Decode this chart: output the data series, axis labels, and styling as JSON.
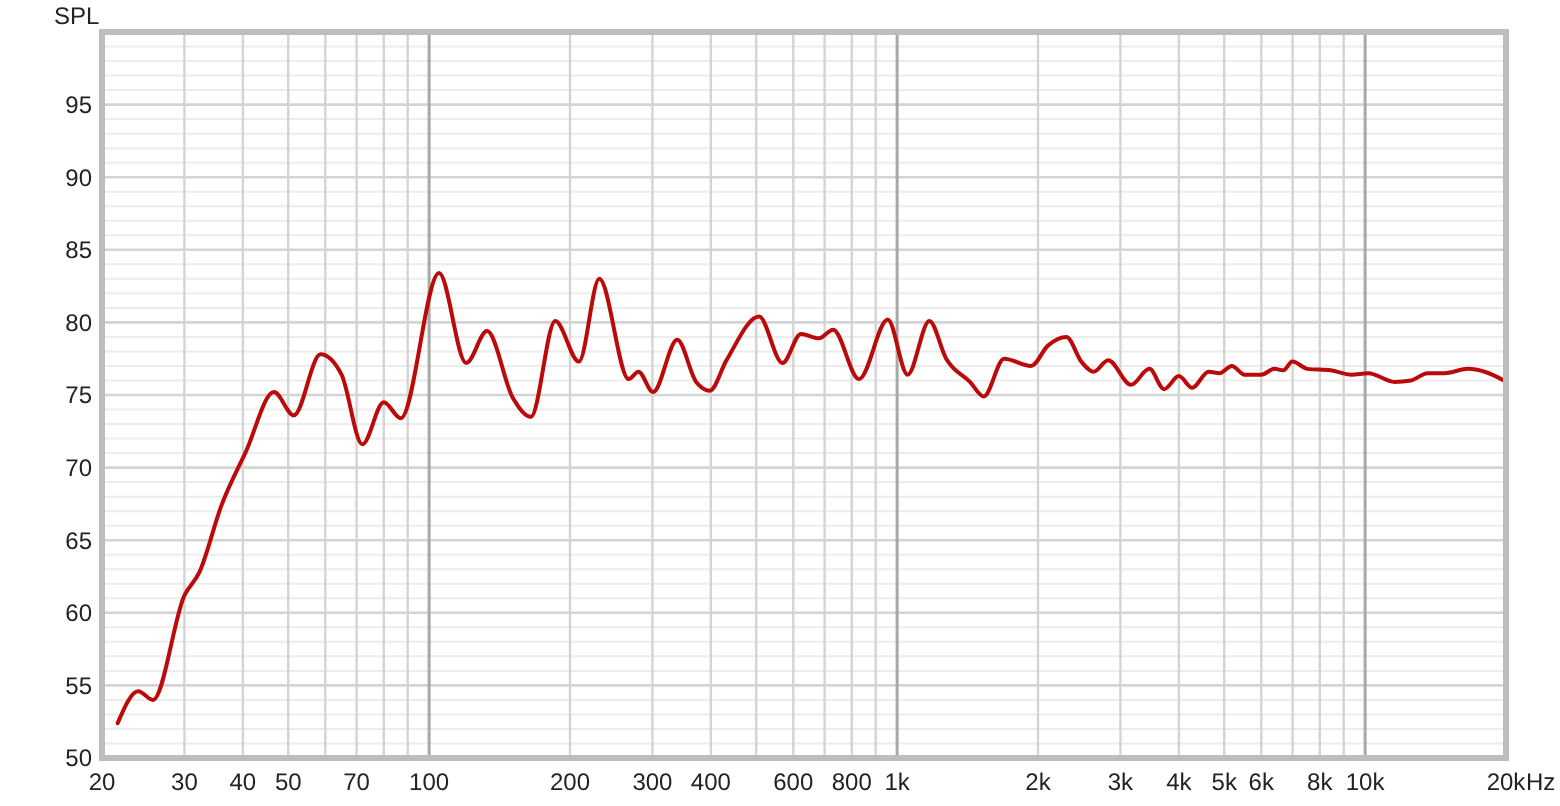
{
  "chart_data": {
    "type": "line",
    "ylabel": "SPL",
    "log": "x",
    "grid": true,
    "marker": "none",
    "line_style": "solid",
    "xlim": [
      20,
      20000
    ],
    "ylim": [
      50,
      100
    ],
    "xticks": [
      20,
      30,
      40,
      50,
      {
        "value": 60,
        "label": null
      },
      70,
      {
        "value": 80,
        "label": null
      },
      {
        "value": 90,
        "label": null
      },
      100,
      200,
      300,
      400,
      {
        "value": 500,
        "label": null
      },
      600,
      {
        "value": 700,
        "label": null
      },
      800,
      {
        "value": 900,
        "label": null
      },
      {
        "value": 1000,
        "label": "1k"
      },
      {
        "value": 2000,
        "label": "2k"
      },
      {
        "value": 3000,
        "label": "3k"
      },
      {
        "value": 4000,
        "label": "4k"
      },
      {
        "value": 5000,
        "label": "5k"
      },
      {
        "value": 6000,
        "label": "6k"
      },
      {
        "value": 7000,
        "label": null
      },
      {
        "value": 8000,
        "label": "8k"
      },
      {
        "value": 9000,
        "label": null
      },
      {
        "value": 10000,
        "label": "10k"
      },
      {
        "value": 20000,
        "label": "20k"
      }
    ],
    "xlabel": "Hz",
    "yticks": [
      50,
      {
        "value": 51,
        "label": null
      },
      {
        "value": 52,
        "label": null
      },
      {
        "value": 53,
        "label": null
      },
      {
        "value": 54,
        "label": null
      },
      55,
      {
        "value": 56,
        "label": null
      },
      {
        "value": 57,
        "label": null
      },
      {
        "value": 58,
        "label": null
      },
      {
        "value": 59,
        "label": null
      },
      60,
      {
        "value": 61,
        "label": null
      },
      {
        "value": 62,
        "label": null
      },
      {
        "value": 63,
        "label": null
      },
      {
        "value": 64,
        "label": null
      },
      65,
      {
        "value": 66,
        "label": null
      },
      {
        "value": 67,
        "label": null
      },
      {
        "value": 68,
        "label": null
      },
      {
        "value": 69,
        "label": null
      },
      70,
      {
        "value": 71,
        "label": null
      },
      {
        "value": 72,
        "label": null
      },
      {
        "value": 73,
        "label": null
      },
      {
        "value": 74,
        "label": null
      },
      75,
      {
        "value": 76,
        "label": null
      },
      {
        "value": 77,
        "label": null
      },
      {
        "value": 78,
        "label": null
      },
      {
        "value": 79,
        "label": null
      },
      80,
      {
        "value": 81,
        "label": null
      },
      {
        "value": 82,
        "label": null
      },
      {
        "value": 83,
        "label": null
      },
      {
        "value": 84,
        "label": null
      },
      85,
      {
        "value": 86,
        "label": null
      },
      {
        "value": 87,
        "label": null
      },
      {
        "value": 88,
        "label": null
      },
      {
        "value": 89,
        "label": null
      },
      90,
      {
        "value": 91,
        "label": null
      },
      {
        "value": 92,
        "label": null
      },
      {
        "value": 93,
        "label": null
      },
      {
        "value": 94,
        "label": null
      },
      95,
      {
        "value": 96,
        "label": null
      },
      {
        "value": 97,
        "label": null
      },
      {
        "value": 98,
        "label": null
      },
      {
        "value": 99,
        "label": null
      }
    ],
    "series": [
      {
        "color": "#bb0a0a",
        "x": [
          21.6,
          23.9,
          25.7,
          30,
          32.3,
          36,
          40.6,
          46.6,
          51.4,
          58.6,
          65,
          72,
          80,
          87,
          105,
          120,
          133,
          151,
          165,
          186,
          209,
          231,
          267,
          280,
          301,
          339,
          372,
          398,
          432,
          507,
          569,
          623,
          680,
          730,
          829,
          955,
          1053,
          1172,
          1273,
          1431,
          1531,
          1693,
          1933,
          2100,
          2300,
          2475,
          2630,
          2825,
          3160,
          3460,
          3720,
          4000,
          4270,
          4630,
          4890,
          5190,
          5530,
          6000,
          6400,
          6690,
          6990,
          7530,
          8440,
          9350,
          10150,
          11560,
          12530,
          13600,
          14780,
          16590,
          18000,
          19800
        ],
        "values": [
          52.4,
          54.6,
          54.0,
          61.2,
          62.8,
          67.4,
          71.1,
          75.2,
          73.6,
          77.8,
          76.4,
          71.6,
          74.5,
          73.4,
          83.4,
          77.2,
          79.4,
          74.8,
          73.5,
          80.1,
          77.3,
          83.0,
          76.1,
          76.6,
          75.2,
          78.8,
          75.9,
          75.3,
          77.4,
          80.4,
          77.2,
          79.2,
          78.9,
          79.5,
          76.1,
          80.2,
          76.4,
          80.1,
          77.5,
          75.9,
          74.9,
          77.5,
          77.0,
          78.4,
          79.0,
          77.3,
          76.6,
          77.4,
          75.7,
          76.8,
          75.4,
          76.3,
          75.5,
          76.6,
          76.5,
          77.0,
          76.4,
          76.4,
          76.8,
          76.7,
          77.3,
          76.8,
          76.7,
          76.4,
          76.5,
          75.9,
          76.0,
          76.5,
          76.5,
          76.8,
          76.6,
          76.0
        ]
      }
    ]
  }
}
